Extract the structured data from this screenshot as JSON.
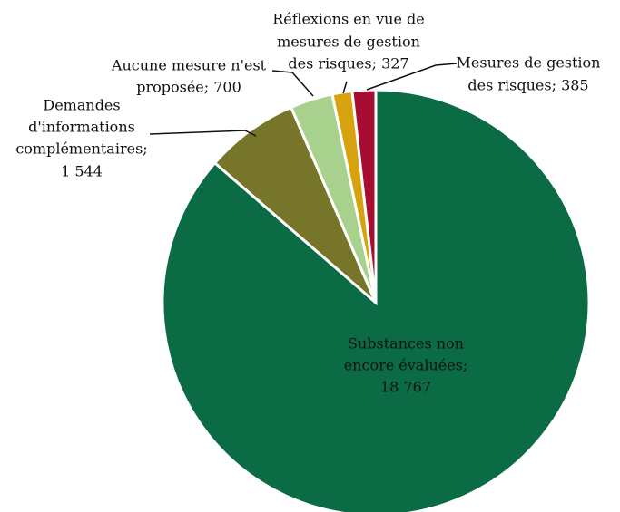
{
  "chart_data": {
    "type": "pie",
    "values": [
      18767,
      1544,
      700,
      327,
      385
    ],
    "value_labels": [
      [
        "Substances non",
        "encore évaluées;",
        "18 767"
      ],
      [
        "Demandes",
        "d'informations",
        "complémentaires;",
        "1 544"
      ],
      [
        "Aucune mesure n'est",
        "proposée; 700"
      ],
      [
        "Réflexions en vue de",
        "mesures de gestion",
        "des risques; 327"
      ],
      [
        "Mesures de gestion",
        "des risques; 385"
      ]
    ],
    "colors": [
      "#0b6b45",
      "#76752a",
      "#a9d18e",
      "#d6a30e",
      "#a50e31"
    ]
  }
}
